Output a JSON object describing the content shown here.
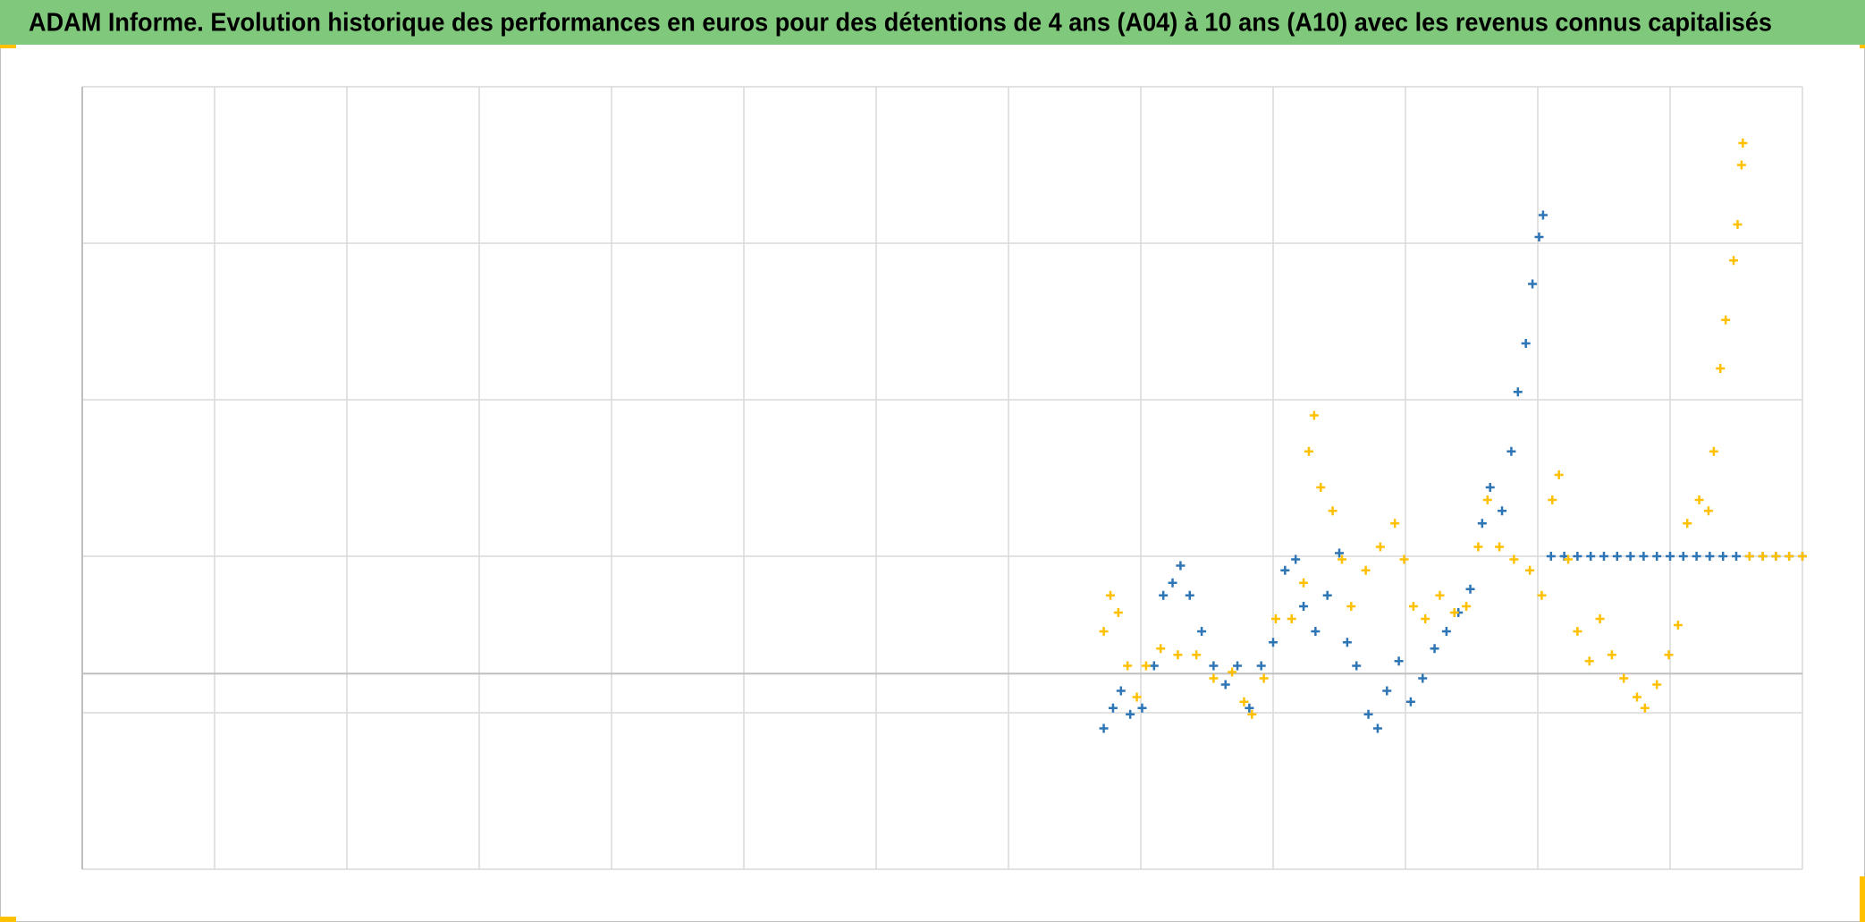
{
  "chart_data": {
    "type": "scatter",
    "title": "ADAM Informe. Evolution historique des performances en euros pour des détentions de 4 ans (A04) à 10 ans (A10) avec les revenus connus capitalisés",
    "xlim": [
      0,
      13
    ],
    "xticks": [
      0,
      1,
      2,
      3,
      4,
      5,
      6,
      7,
      8,
      9,
      10,
      11,
      12,
      13
    ],
    "ylim": [
      -1.25,
      3.75
    ],
    "yticks": [
      -1.25,
      -0.25,
      0.75,
      1.75,
      2.75,
      3.75
    ],
    "x_axis_at": 0,
    "grid": true,
    "marker": "+",
    "series": [
      {
        "color": "#2e75b6",
        "x": [
          7.72,
          7.79,
          7.85,
          7.92,
          8.01,
          8.1,
          8.17,
          8.24,
          8.3,
          8.37,
          8.46,
          8.55,
          8.64,
          8.73,
          8.82,
          8.91,
          9.0,
          9.09,
          9.17,
          9.23,
          9.32,
          9.41,
          9.5,
          9.56,
          9.63,
          9.72,
          9.79,
          9.86,
          9.95,
          10.04,
          10.13,
          10.22,
          10.31,
          10.4,
          10.49,
          10.58,
          10.64,
          10.73,
          10.8,
          10.85,
          10.91,
          10.96,
          11.01,
          11.04,
          11.1,
          11.2,
          11.3,
          11.4,
          11.5,
          11.6,
          11.7,
          11.8,
          11.9,
          12.0,
          12.1,
          12.2,
          12.3,
          12.4,
          12.5,
          12.6,
          12.7,
          12.8,
          12.9,
          13.0
        ],
        "values": [
          -0.35,
          -0.22,
          -0.11,
          -0.26,
          -0.22,
          0.05,
          0.5,
          0.58,
          0.69,
          0.5,
          0.27,
          0.05,
          -0.07,
          0.05,
          -0.22,
          0.05,
          0.2,
          0.66,
          0.73,
          0.43,
          0.27,
          0.5,
          0.77,
          0.2,
          0.05,
          -0.26,
          -0.35,
          -0.11,
          0.08,
          -0.18,
          -0.03,
          0.16,
          0.27,
          0.39,
          0.54,
          0.96,
          1.19,
          1.04,
          1.42,
          1.8,
          2.11,
          2.49,
          2.79,
          2.93,
          0.75,
          0.75,
          0.75,
          0.75,
          0.75,
          0.75,
          0.75,
          0.75,
          0.75,
          0.75,
          0.75,
          0.75,
          0.75,
          0.75,
          0.75,
          0.75,
          0.75,
          0.75,
          0.75,
          0.75
        ]
      },
      {
        "color": "#ffc000",
        "x": [
          7.72,
          7.77,
          7.83,
          7.9,
          7.97,
          8.04,
          8.15,
          8.28,
          8.42,
          8.55,
          8.69,
          8.78,
          8.84,
          8.93,
          9.02,
          9.14,
          9.23,
          9.27,
          9.31,
          9.36,
          9.45,
          9.52,
          9.59,
          9.7,
          9.81,
          9.92,
          9.99,
          10.06,
          10.15,
          10.26,
          10.37,
          10.46,
          10.55,
          10.62,
          10.71,
          10.82,
          10.94,
          11.03,
          11.11,
          11.16,
          11.23,
          11.3,
          11.39,
          11.47,
          11.56,
          11.65,
          11.75,
          11.81,
          11.9,
          11.99,
          12.06,
          12.13,
          12.22,
          12.29,
          12.33,
          12.38,
          12.42,
          12.48,
          12.51,
          12.54,
          12.55,
          12.6,
          12.7,
          12.8,
          12.9,
          13.0
        ],
        "values": [
          0.27,
          0.5,
          0.39,
          0.05,
          -0.15,
          0.05,
          0.16,
          0.12,
          0.12,
          -0.03,
          0.01,
          -0.18,
          -0.26,
          -0.03,
          0.35,
          0.35,
          0.58,
          1.42,
          1.65,
          1.19,
          1.04,
          0.73,
          0.43,
          0.66,
          0.81,
          0.96,
          0.73,
          0.43,
          0.35,
          0.5,
          0.39,
          0.43,
          0.81,
          1.11,
          0.81,
          0.73,
          0.66,
          0.5,
          1.11,
          1.27,
          0.73,
          0.27,
          0.08,
          0.35,
          0.12,
          -0.03,
          -0.15,
          -0.22,
          -0.07,
          0.12,
          0.31,
          0.96,
          1.11,
          1.04,
          1.42,
          1.95,
          2.26,
          2.64,
          2.87,
          3.25,
          3.39,
          0.75,
          0.75,
          0.75,
          0.75,
          0.75
        ]
      }
    ]
  }
}
